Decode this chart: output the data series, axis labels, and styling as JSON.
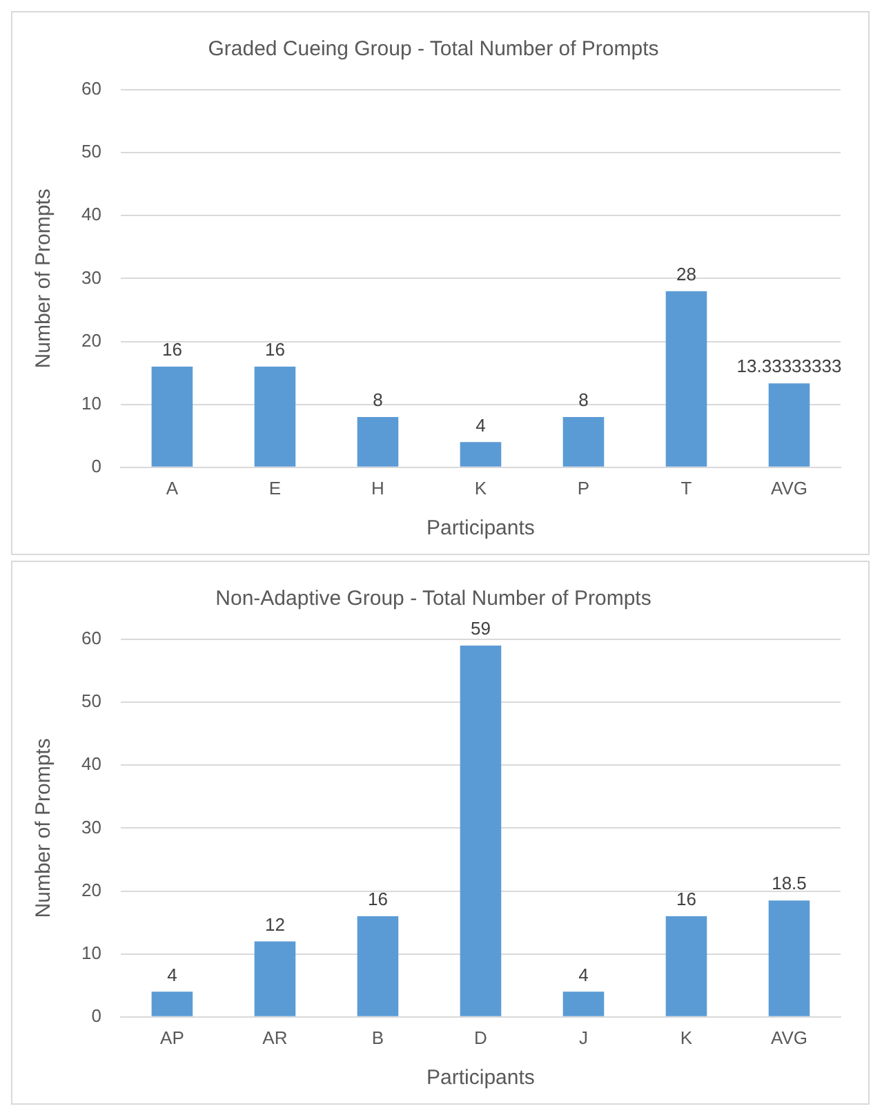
{
  "chart_data": [
    {
      "type": "bar",
      "title": "Graded Cueing Group - Total Number of Prompts",
      "xlabel": "Participants",
      "ylabel": "Number of Prompts",
      "categories": [
        "A",
        "E",
        "H",
        "K",
        "P",
        "T",
        "AVG"
      ],
      "values": [
        16,
        16,
        8,
        4,
        8,
        28,
        13.33333333
      ],
      "color": "#5b9bd5",
      "ylim": [
        0,
        60
      ],
      "yticks": [
        0,
        10,
        20,
        30,
        40,
        50,
        60
      ],
      "grid": "y",
      "data_labels": true
    },
    {
      "type": "bar",
      "title": "Non-Adaptive Group - Total Number of Prompts",
      "xlabel": "Participants",
      "ylabel": "Number of Prompts",
      "categories": [
        "AP",
        "AR",
        "B",
        "D",
        "J",
        "K",
        "AVG"
      ],
      "values": [
        4,
        12,
        16,
        59,
        4,
        16,
        18.5
      ],
      "color": "#5b9bd5",
      "ylim": [
        0,
        60
      ],
      "yticks": [
        0,
        10,
        20,
        30,
        40,
        50,
        60
      ],
      "grid": "y",
      "data_labels": true
    }
  ]
}
